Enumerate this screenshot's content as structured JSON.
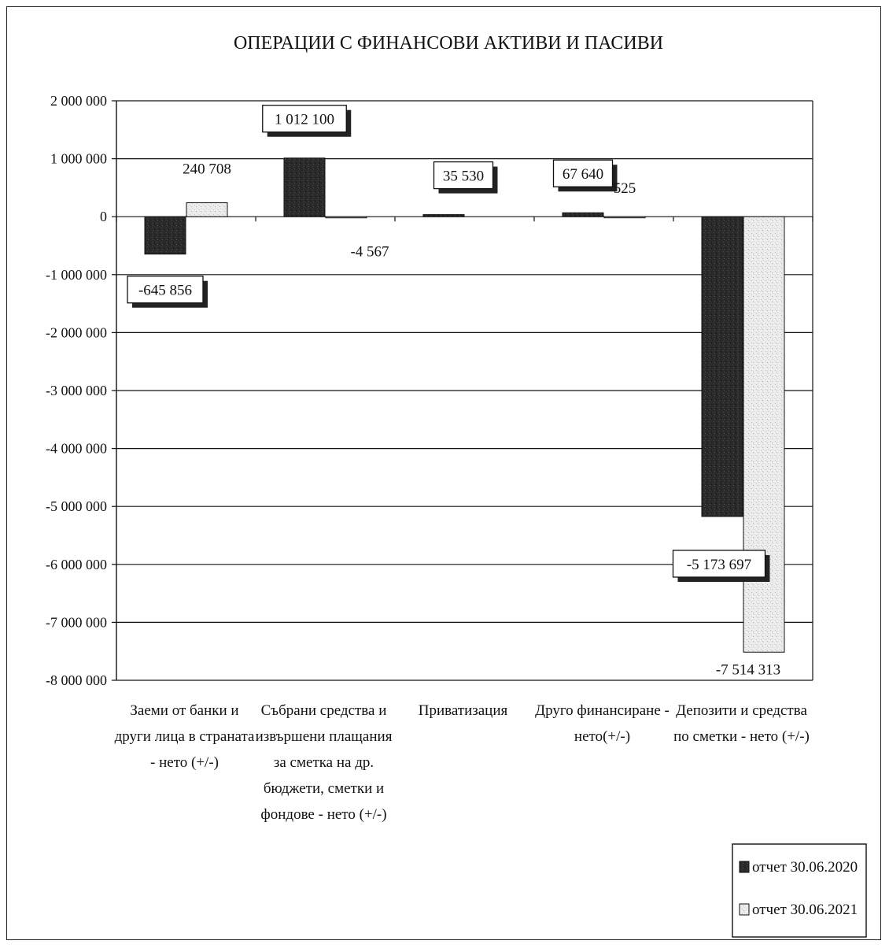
{
  "chart_data": {
    "type": "bar",
    "title": "ОПЕРАЦИИ С ФИНАНСОВИ АКТИВИ И ПАСИВИ",
    "xlabel": "",
    "ylabel": "",
    "ylim": [
      -8000000,
      2000000
    ],
    "yticks": [
      2000000,
      1000000,
      0,
      -1000000,
      -2000000,
      -3000000,
      -4000000,
      -5000000,
      -6000000,
      -7000000,
      -8000000
    ],
    "ytick_labels": [
      "2 000 000",
      "1 000 000",
      "0",
      "-1 000 000",
      "-2 000 000",
      "-3 000 000",
      "-4 000 000",
      "-5 000 000",
      "-6 000 000",
      "-7 000 000",
      "-8 000 000"
    ],
    "grid": true,
    "legend_position": "bottom-right",
    "categories": [
      [
        "Заеми от банки и",
        "други лица в страната",
        "- нето (+/-)"
      ],
      [
        "Събрани средства и",
        "извършени плащания",
        "за сметка на др.",
        "бюджети, сметки и",
        "фондове - нето (+/-)"
      ],
      [
        "Приватизация"
      ],
      [
        "Друго финансиране -",
        "нето(+/-)"
      ],
      [
        "Депозити и средства",
        "по сметки - нето (+/-)"
      ]
    ],
    "series": [
      {
        "name": "отчет 30.06.2020",
        "color": "#2b2b2b",
        "values": [
          -645856,
          1012100,
          35530,
          67640,
          -5173697
        ],
        "labels": [
          "-645 856",
          "1 012 100",
          "35 530",
          "67 640",
          "-5 173 697"
        ]
      },
      {
        "name": "отчет 30.06.2021",
        "color": "#e6e6e6",
        "values": [
          240708,
          -4567,
          0,
          525,
          -7514313
        ],
        "labels": [
          "240 708",
          "-4 567",
          "",
          "525",
          "-7 514 313"
        ]
      }
    ]
  }
}
